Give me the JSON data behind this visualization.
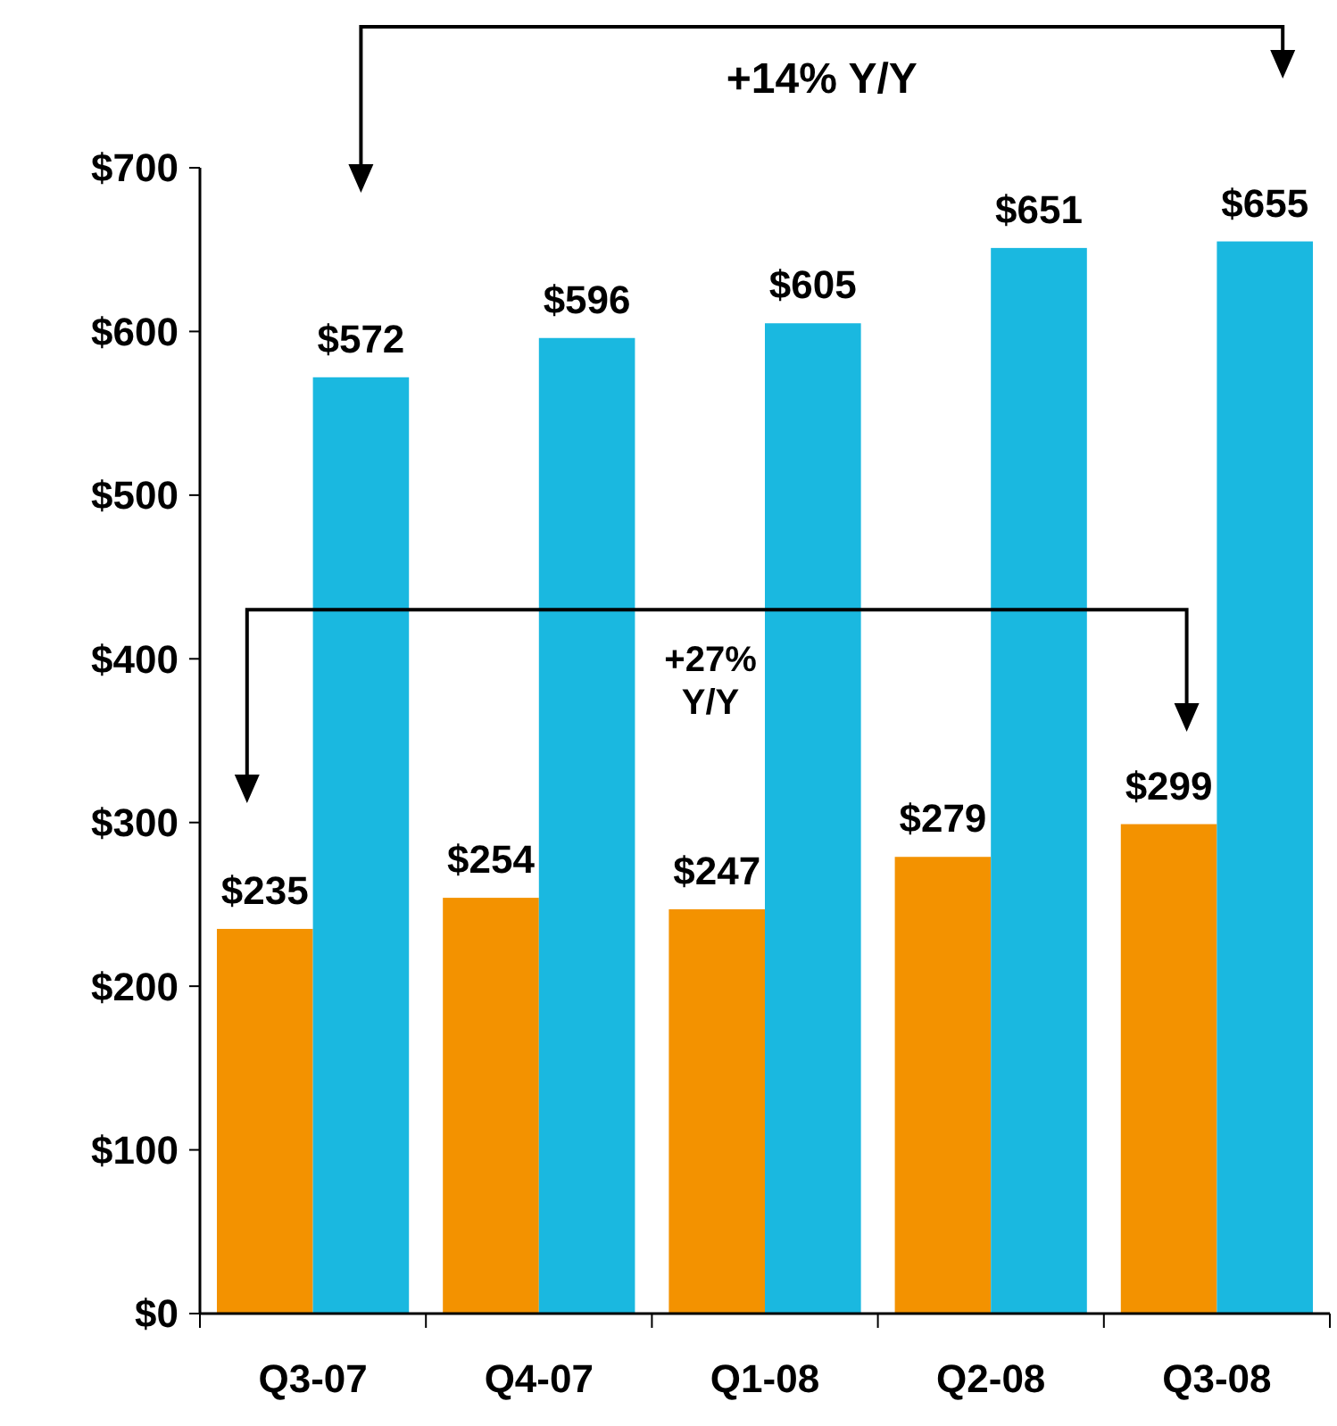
{
  "chart_data": {
    "type": "bar",
    "categories": [
      "Q3-07",
      "Q4-07",
      "Q1-08",
      "Q2-08",
      "Q3-08"
    ],
    "series": [
      {
        "color": "#f39200",
        "values": [
          235,
          254,
          247,
          279,
          299
        ],
        "value_labels": [
          "$235",
          "$254",
          "$247",
          "$279",
          "$299"
        ]
      },
      {
        "color": "#1ab8e0",
        "values": [
          572,
          596,
          605,
          651,
          655
        ],
        "value_labels": [
          "$572",
          "$596",
          "$605",
          "$651",
          "$655"
        ]
      }
    ],
    "ylim": [
      0,
      700
    ],
    "yticks": [
      {
        "value": 0,
        "label": "$0"
      },
      {
        "value": 100,
        "label": "$100"
      },
      {
        "value": 200,
        "label": "$200"
      },
      {
        "value": 300,
        "label": "$300"
      },
      {
        "value": 400,
        "label": "$400"
      },
      {
        "value": 500,
        "label": "$500"
      },
      {
        "value": 600,
        "label": "$600"
      },
      {
        "value": 700,
        "label": "$700"
      }
    ],
    "annotations": [
      "+14% Y/Y",
      "+27% Y/Y"
    ],
    "grid": false
  }
}
